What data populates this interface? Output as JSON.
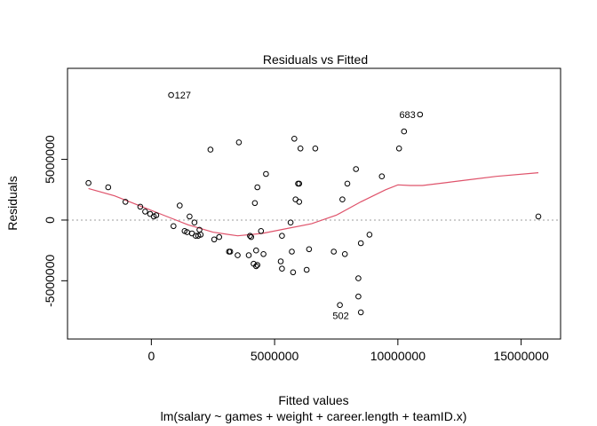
{
  "chart_data": {
    "type": "scatter",
    "title": "Residuals vs Fitted",
    "xlabel": "Fitted values",
    "ylabel": "Residuals",
    "subtitle": "lm(salary ~ games + weight + career.length + teamID.x)",
    "xlim": [
      -3400000,
      16600000
    ],
    "ylim": [
      -9800000,
      12500000
    ],
    "x_ticks": [
      0,
      5000000,
      10000000,
      15000000
    ],
    "x_tick_labels": [
      "0",
      "5000000",
      "10000000",
      "15000000"
    ],
    "y_ticks": [
      -5000000,
      0,
      5000000
    ],
    "y_tick_labels": [
      "-5000000",
      "0",
      "5000000"
    ],
    "reference_line_y": 0,
    "points": [
      {
        "x": -2550000,
        "y": 3050000
      },
      {
        "x": -1750000,
        "y": 2700000
      },
      {
        "x": -1050000,
        "y": 1500000
      },
      {
        "x": -450000,
        "y": 1100000
      },
      {
        "x": -250000,
        "y": 700000
      },
      {
        "x": -50000,
        "y": 500000
      },
      {
        "x": 100000,
        "y": 300000
      },
      {
        "x": 200000,
        "y": 400000
      },
      {
        "x": 800000,
        "y": 10300000
      },
      {
        "x": 900000,
        "y": -500000
      },
      {
        "x": 1150000,
        "y": 1200000
      },
      {
        "x": 1350000,
        "y": -900000
      },
      {
        "x": 1450000,
        "y": -1000000
      },
      {
        "x": 1550000,
        "y": 300000
      },
      {
        "x": 1650000,
        "y": -1100000
      },
      {
        "x": 1750000,
        "y": -200000
      },
      {
        "x": 1800000,
        "y": -1300000
      },
      {
        "x": 1900000,
        "y": -1300000
      },
      {
        "x": 1950000,
        "y": -800000
      },
      {
        "x": 2000000,
        "y": -1200000
      },
      {
        "x": 2400000,
        "y": 5800000
      },
      {
        "x": 2550000,
        "y": -1600000
      },
      {
        "x": 2750000,
        "y": -1400000
      },
      {
        "x": 3150000,
        "y": -2600000
      },
      {
        "x": 3200000,
        "y": -2600000
      },
      {
        "x": 3550000,
        "y": 6400000
      },
      {
        "x": 3500000,
        "y": -2900000
      },
      {
        "x": 3950000,
        "y": -2900000
      },
      {
        "x": 4000000,
        "y": -1300000
      },
      {
        "x": 4050000,
        "y": -1400000
      },
      {
        "x": 4150000,
        "y": -3600000
      },
      {
        "x": 4250000,
        "y": -3800000
      },
      {
        "x": 4300000,
        "y": -3700000
      },
      {
        "x": 4200000,
        "y": 1400000
      },
      {
        "x": 4300000,
        "y": 2700000
      },
      {
        "x": 4450000,
        "y": -900000
      },
      {
        "x": 4550000,
        "y": -2800000
      },
      {
        "x": 4650000,
        "y": 3800000
      },
      {
        "x": 4250000,
        "y": -2500000
      },
      {
        "x": 5300000,
        "y": -4000000
      },
      {
        "x": 5250000,
        "y": -3400000
      },
      {
        "x": 5300000,
        "y": -1300000
      },
      {
        "x": 5650000,
        "y": -200000
      },
      {
        "x": 5700000,
        "y": -2600000
      },
      {
        "x": 5750000,
        "y": -4300000
      },
      {
        "x": 5800000,
        "y": 6700000
      },
      {
        "x": 5850000,
        "y": 1700000
      },
      {
        "x": 5950000,
        "y": 3000000
      },
      {
        "x": 6000000,
        "y": 3000000
      },
      {
        "x": 6000000,
        "y": 1500000
      },
      {
        "x": 6050000,
        "y": 5900000
      },
      {
        "x": 6300000,
        "y": -4100000
      },
      {
        "x": 6400000,
        "y": -2400000
      },
      {
        "x": 6650000,
        "y": 5900000
      },
      {
        "x": 7400000,
        "y": -2600000
      },
      {
        "x": 7650000,
        "y": -7000000
      },
      {
        "x": 7750000,
        "y": 1700000
      },
      {
        "x": 7850000,
        "y": -2800000
      },
      {
        "x": 7950000,
        "y": 3000000
      },
      {
        "x": 8300000,
        "y": 4200000
      },
      {
        "x": 8400000,
        "y": -4800000
      },
      {
        "x": 8400000,
        "y": -6300000
      },
      {
        "x": 8500000,
        "y": -7600000
      },
      {
        "x": 8500000,
        "y": -1900000
      },
      {
        "x": 8850000,
        "y": -1200000
      },
      {
        "x": 9350000,
        "y": 3600000
      },
      {
        "x": 10050000,
        "y": 5900000
      },
      {
        "x": 10250000,
        "y": 7300000
      },
      {
        "x": 10900000,
        "y": 8700000
      },
      {
        "x": 15700000,
        "y": 300000
      }
    ],
    "point_labels": [
      {
        "text": "127",
        "x": 800000,
        "y": 10300000,
        "side": "right"
      },
      {
        "text": "683",
        "x": 10900000,
        "y": 8700000,
        "side": "left"
      },
      {
        "text": "502",
        "x": 7650000,
        "y": -7000000,
        "side": "below"
      }
    ],
    "smooth_line": {
      "color": "#df536b",
      "x": [
        -2550000,
        -1500000,
        -500000,
        500000,
        1500000,
        2500000,
        3500000,
        4500000,
        5500000,
        6500000,
        7500000,
        8500000,
        9500000,
        10000000,
        10500000,
        11000000,
        12000000,
        13000000,
        14000000,
        15700000
      ],
      "y": [
        2600000,
        2000000,
        1200000,
        400000,
        -400000,
        -1000000,
        -1300000,
        -1100000,
        -700000,
        -300000,
        400000,
        1500000,
        2500000,
        2900000,
        2850000,
        2850000,
        3100000,
        3350000,
        3600000,
        3900000
      ]
    }
  }
}
